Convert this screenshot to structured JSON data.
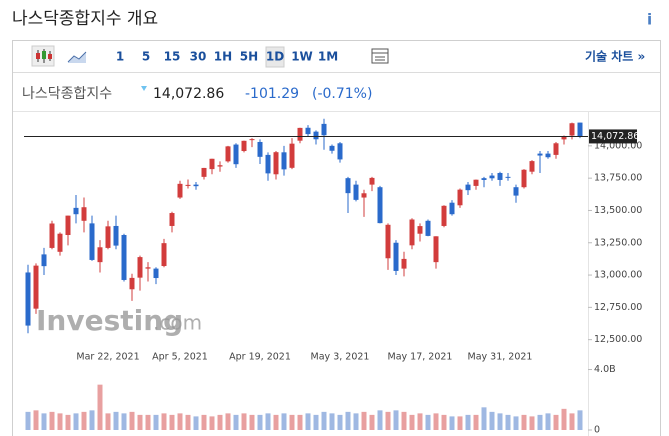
{
  "header": {
    "title": "나스닥종합지수 개요",
    "info": "i"
  },
  "toolbar": {
    "intervals": [
      "1",
      "5",
      "15",
      "30",
      "1H",
      "5H",
      "1D",
      "1W",
      "1M"
    ],
    "selected": 6,
    "technical": "기술 차트 »"
  },
  "quote": {
    "name": "나스닥종합지수",
    "price": "14,072.86",
    "change": "-101.29",
    "change_pct": "(-0.71%)"
  },
  "watermark": {
    "brand": "Investing",
    "suffix": ".com"
  },
  "chart_data": {
    "type": "candlestick",
    "categories": [
      null,
      null,
      null,
      null,
      null,
      null,
      null,
      null,
      null,
      null,
      "Mar 22, 2021",
      null,
      null,
      null,
      null,
      null,
      null,
      null,
      null,
      "Apr 5, 2021",
      null,
      null,
      null,
      null,
      null,
      null,
      null,
      null,
      null,
      "Apr 19, 2021",
      null,
      null,
      null,
      null,
      null,
      null,
      null,
      null,
      null,
      "May 3, 2021",
      null,
      null,
      null,
      null,
      null,
      null,
      null,
      null,
      null,
      "May 17, 2021",
      null,
      null,
      null,
      null,
      null,
      null,
      null,
      null,
      null,
      "May 31, 2021",
      null,
      null,
      null,
      null,
      null,
      null,
      null,
      null,
      null,
      null
    ],
    "open": [
      13020,
      12740,
      13160,
      13210,
      13180,
      13310,
      13520,
      13420,
      13400,
      13100,
      13210,
      13380,
      13310,
      12890,
      12980,
      13050,
      13050,
      13070,
      13380,
      13600,
      13690,
      13700,
      13760,
      13820,
      13840,
      13880,
      14010,
      13960,
      14050,
      14030,
      13930,
      13780,
      13950,
      13830,
      14040,
      14140,
      14110,
      14170,
      14000,
      14020,
      13750,
      13700,
      13600,
      13700,
      13680,
      13130,
      13250,
      13050,
      13230,
      13320,
      13420,
      13100,
      13380,
      13560,
      13540,
      13700,
      13690,
      13750,
      13770,
      13790,
      13760,
      13680,
      13680,
      13800,
      13940,
      13940,
      13930,
      14050,
      14080,
      14180
    ],
    "high": [
      13080,
      13090,
      13210,
      13420,
      13330,
      13460,
      13620,
      13600,
      13460,
      13270,
      13420,
      13460,
      13320,
      13010,
      13150,
      13100,
      13060,
      13280,
      13490,
      13730,
      13740,
      13720,
      13830,
      13900,
      13880,
      14000,
      14020,
      14040,
      14060,
      14050,
      13950,
      13960,
      14000,
      14060,
      14140,
      14160,
      14120,
      14210,
      14010,
      14030,
      13760,
      13730,
      13660,
      13760,
      13690,
      13400,
      13270,
      13180,
      13440,
      13400,
      13430,
      13300,
      13540,
      13580,
      13670,
      13720,
      13740,
      13760,
      13790,
      13800,
      13790,
      13700,
      13820,
      13890,
      13960,
      13960,
      14030,
      14080,
      14180,
      14180
    ],
    "low": [
      12550,
      12700,
      13000,
      13200,
      13150,
      13230,
      13400,
      13330,
      13110,
      13020,
      13200,
      13200,
      12950,
      12800,
      12880,
      12950,
      12930,
      13060,
      13330,
      13590,
      13670,
      13660,
      13740,
      13780,
      13800,
      13870,
      13830,
      13950,
      13990,
      13860,
      13730,
      13740,
      13770,
      13820,
      14020,
      14070,
      14010,
      13970,
      13940,
      13870,
      13480,
      13570,
      13450,
      13650,
      13400,
      13040,
      13000,
      12990,
      13200,
      13260,
      13300,
      13050,
      13370,
      13460,
      13520,
      13620,
      13660,
      13680,
      13730,
      13690,
      13730,
      13560,
      13670,
      13780,
      13790,
      13900,
      13900,
      14010,
      14050,
      14060
    ],
    "close": [
      12609,
      13073,
      13069,
      13399,
      13320,
      13460,
      13471,
      13525,
      13117,
      13215,
      13377,
      13228,
      12962,
      12978,
      13139,
      13060,
      12977,
      13247,
      13480,
      13706,
      13698,
      13688,
      13829,
      13900,
      13850,
      13996,
      13858,
      14039,
      14052,
      13915,
      13787,
      13951,
      13818,
      14017,
      14139,
      14091,
      14051,
      14082,
      13962,
      13895,
      13634,
      13582,
      13633,
      13752,
      13402,
      13389,
      13032,
      13125,
      13430,
      13379,
      13303,
      13300,
      13536,
      13471,
      13661,
      13657,
      13738,
      13736,
      13749,
      13736,
      13756,
      13615,
      13815,
      13882,
      13925,
      13912,
      14020,
      14070,
      14175,
      14073
    ],
    "volume": [
      1.2,
      1.3,
      1.1,
      1.2,
      1.1,
      1.0,
      1.1,
      1.2,
      1.3,
      3.0,
      1.1,
      1.2,
      1.1,
      1.2,
      1.0,
      1.0,
      1.0,
      1.1,
      1.0,
      1.1,
      1.0,
      0.9,
      1.0,
      0.9,
      1.0,
      1.1,
      1.0,
      1.1,
      1.0,
      1.0,
      1.1,
      1.0,
      1.1,
      1.0,
      1.0,
      1.1,
      1.0,
      1.2,
      1.1,
      1.0,
      1.2,
      1.1,
      1.2,
      1.0,
      1.3,
      1.2,
      1.3,
      1.2,
      1.0,
      1.1,
      1.0,
      1.1,
      1.0,
      0.9,
      0.9,
      1.0,
      1.0,
      1.5,
      1.2,
      1.1,
      1.0,
      0.9,
      1.0,
      0.9,
      1.0,
      1.1,
      1.0,
      1.4,
      1.1,
      1.3
    ],
    "up_color": "#d23c3c",
    "down_color": "#2a6acb",
    "up_volume_color": "#e8a0a0",
    "down_volume_color": "#9fb8e2",
    "ylim": [
      12420,
      14262
    ],
    "yticks": [
      {
        "value": 12500,
        "label": "12,500.00"
      },
      {
        "value": 12750,
        "label": "12,750.00"
      },
      {
        "value": 13000,
        "label": "13,000.00"
      },
      {
        "value": 13250,
        "label": "13,250.00"
      },
      {
        "value": 13500,
        "label": "13,500.00"
      },
      {
        "value": 13750,
        "label": "13,750.00"
      },
      {
        "value": 14000,
        "label": "14,000.00"
      }
    ],
    "vlim": [
      0,
      4.3
    ],
    "vticks": [
      0,
      {
        "value": 4.0,
        "label": "4.0B"
      }
    ],
    "last_price": 14072.86,
    "last_label": "14,072.86"
  }
}
